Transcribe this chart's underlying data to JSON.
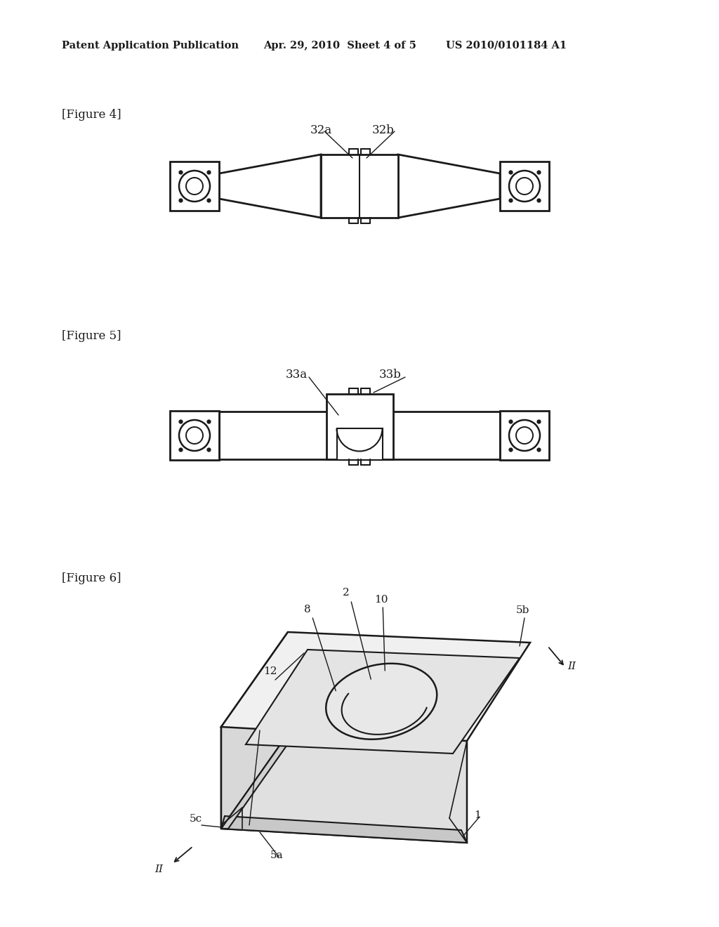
{
  "header_left": "Patent Application Publication",
  "header_mid": "Apr. 29, 2010  Sheet 4 of 5",
  "header_right": "US 2010/0101184 A1",
  "fig4_label": "[Figure 4]",
  "fig5_label": "[Figure 5]",
  "fig6_label": "[Figure 6]",
  "label_32a": "32a",
  "label_32b": "32b",
  "label_33a": "33a",
  "label_33b": "33b",
  "label_2": "2",
  "label_8": "8",
  "label_10": "10",
  "label_12": "12",
  "label_5a": "5a",
  "label_5b": "5b",
  "label_5c": "5c",
  "label_1": "1",
  "label_II": "II",
  "bg_color": "#ffffff",
  "line_color": "#1a1a1a",
  "text_color": "#1a1a1a"
}
